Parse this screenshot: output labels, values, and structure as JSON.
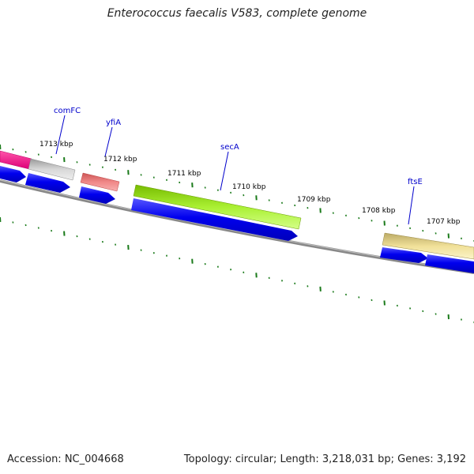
{
  "title": "Enterococcus faecalis V583, complete genome",
  "footer": {
    "accession": "Accession: NC_004668",
    "summary": "Topology: circular; Length: 3,218,031 bp; Genes: 3,192"
  },
  "ticks": [
    "1713 kbp",
    "1712 kbp",
    "1711 kbp",
    "1710 kbp",
    "1709 kbp",
    "1708 kbp",
    "1707 kbp"
  ],
  "gene_labels": [
    "comFC",
    "yfiA",
    "secA",
    "ftsE"
  ],
  "colors": {
    "backbone": "#7a7a7a",
    "tick": "#1a7a1a",
    "cds": "#0000ee",
    "label": "#0000cc",
    "gene_pink": "#ee2288",
    "gene_grey": "#b8b8b8",
    "gene_salmon": "#ee7777",
    "gene_green": "#99ee22",
    "gene_yellow": "#eedd88"
  }
}
